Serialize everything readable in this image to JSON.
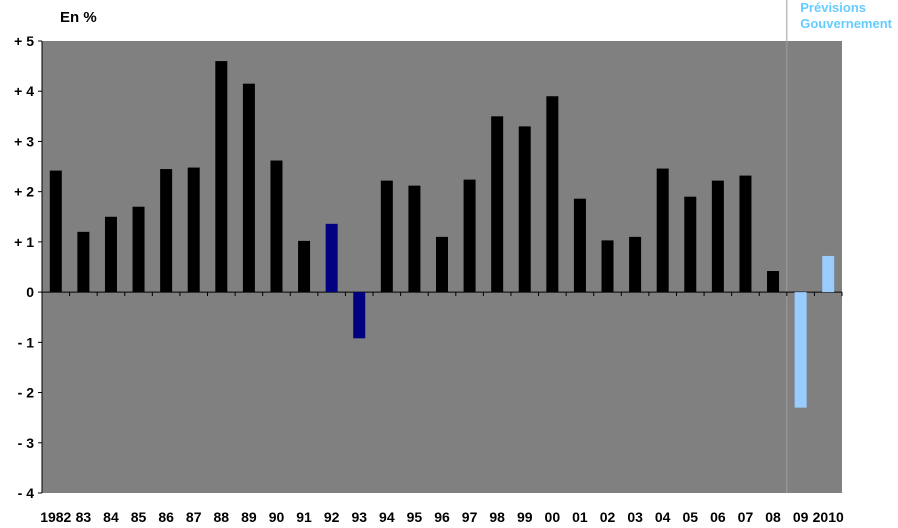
{
  "chart_data": {
    "type": "bar",
    "unit_label": "En %",
    "forecast_label": [
      "Prévisions",
      "Gouvernement"
    ],
    "categories": [
      "1982",
      "83",
      "84",
      "85",
      "86",
      "87",
      "88",
      "89",
      "90",
      "91",
      "92",
      "93",
      "94",
      "95",
      "96",
      "97",
      "98",
      "99",
      "00",
      "01",
      "02",
      "03",
      "04",
      "05",
      "06",
      "07",
      "08",
      "09",
      "2010"
    ],
    "values": [
      2.42,
      1.2,
      1.5,
      1.7,
      2.45,
      2.48,
      4.6,
      4.15,
      2.62,
      1.02,
      1.36,
      -0.92,
      2.22,
      2.12,
      1.1,
      2.24,
      3.5,
      3.3,
      3.9,
      1.86,
      1.03,
      1.1,
      2.46,
      1.9,
      2.22,
      2.32,
      0.42,
      -2.3,
      0.72
    ],
    "bar_colors": [
      "#000000",
      "#000000",
      "#000000",
      "#000000",
      "#000000",
      "#000000",
      "#000000",
      "#000000",
      "#000000",
      "#000000",
      "#000080",
      "#000080",
      "#000000",
      "#000000",
      "#000000",
      "#000000",
      "#000000",
      "#000000",
      "#000000",
      "#000000",
      "#000000",
      "#000000",
      "#000000",
      "#000000",
      "#000000",
      "#000000",
      "#000000",
      "#99ccff",
      "#99ccff"
    ],
    "ylim": [
      -4,
      5
    ],
    "yticks": [
      {
        "value": 5,
        "label": "+ 5"
      },
      {
        "value": 4,
        "label": "+ 4"
      },
      {
        "value": 3,
        "label": "+ 3"
      },
      {
        "value": 2,
        "label": "+ 2"
      },
      {
        "value": 1,
        "label": "+ 1"
      },
      {
        "value": 0,
        "label": "0"
      },
      {
        "value": -1,
        "label": "- 1"
      },
      {
        "value": -2,
        "label": "- 2"
      },
      {
        "value": -3,
        "label": "- 3"
      },
      {
        "value": -4,
        "label": "- 4"
      }
    ],
    "plot_background": "#808080",
    "forecast_color": "#66ccff",
    "grid": false
  }
}
